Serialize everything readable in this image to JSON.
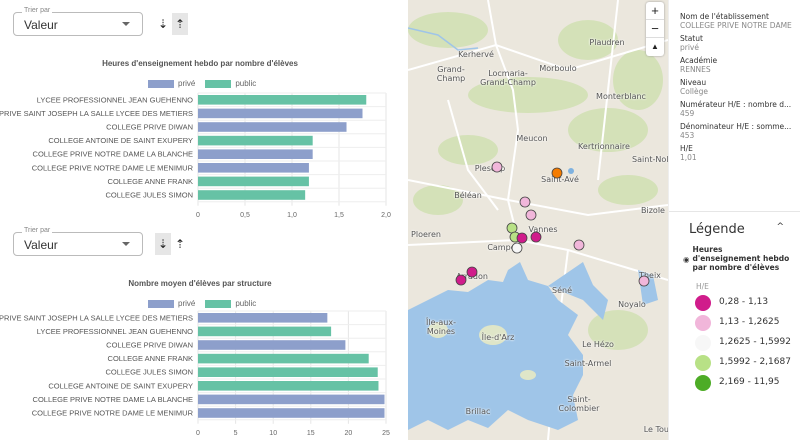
{
  "sort1": {
    "label": "Trier par",
    "value": "Valeur"
  },
  "sort2": {
    "label": "Trier par",
    "value": "Valeur"
  },
  "sort_icons": {
    "desc": "⇣",
    "asc": "⇡"
  },
  "colors": {
    "prive": "#8d9fcb",
    "public": "#66c2a5"
  },
  "legend": {
    "prive": "privé",
    "public": "public"
  },
  "chart_data": [
    {
      "type": "bar",
      "orientation": "horizontal",
      "title": "Heures d'enseignement hebdo par nombre d'élèves",
      "categories": [
        "LYCEE PROFESSIONNEL JEAN GUEHENNO",
        "PRIVE SAINT JOSEPH LA SALLE LYCEE DES METIERS",
        "COLLEGE PRIVE DIWAN",
        "COLLEGE ANTOINE DE SAINT EXUPERY",
        "COLLEGE PRIVE NOTRE DAME LA BLANCHE",
        "COLLEGE PRIVE NOTRE DAME LE MENIMUR",
        "COLLEGE ANNE FRANK",
        "COLLEGE JULES SIMON"
      ],
      "values": [
        1.79,
        1.75,
        1.58,
        1.22,
        1.22,
        1.18,
        1.18,
        1.14
      ],
      "status": [
        "public",
        "privé",
        "privé",
        "public",
        "privé",
        "privé",
        "public",
        "public"
      ],
      "ticks": [
        "0",
        "0,5",
        "1,0",
        "1,5",
        "2,0"
      ],
      "xlim": [
        0,
        2
      ],
      "grid": true,
      "legend_position": "top"
    },
    {
      "type": "bar",
      "orientation": "horizontal",
      "title": "Nombre moyen d'élèves par structure",
      "categories": [
        "PRIVE SAINT JOSEPH LA SALLE LYCEE DES METIERS",
        "LYCEE PROFESSIONNEL JEAN GUEHENNO",
        "COLLEGE PRIVE DIWAN",
        "COLLEGE ANNE FRANK",
        "COLLEGE JULES SIMON",
        "COLLEGE ANTOINE DE SAINT EXUPERY",
        "COLLEGE PRIVE NOTRE DAME LA BLANCHE",
        "COLLEGE PRIVE NOTRE DAME LE MENIMUR"
      ],
      "values": [
        17.2,
        17.7,
        19.6,
        22.7,
        23.9,
        24.0,
        24.8,
        24.8
      ],
      "status": [
        "privé",
        "public",
        "privé",
        "public",
        "public",
        "public",
        "privé",
        "privé"
      ],
      "ticks": [
        "0",
        "5",
        "10",
        "15",
        "20",
        "25"
      ],
      "xlim": [
        0,
        25
      ],
      "grid": true,
      "legend_position": "top"
    }
  ],
  "map": {
    "zoom_in": "+",
    "zoom_out": "−",
    "compass": "▲",
    "places": [
      "Kerhervé",
      "Grand-Champ",
      "Locmaria-Grand-Champ",
      "Morboulo",
      "Plaudren",
      "Monterblanc",
      "Meucon",
      "Kertrionnaire",
      "Saint-Nolff",
      "Plescop",
      "Saint-Avé",
      "Béléan",
      "Bizole",
      "Ploeren",
      "Vannes",
      "Campen",
      "Arradon",
      "Theix",
      "Séné",
      "Noyalo",
      "Île-aux-Moines",
      "Île-d'Arz",
      "Le Hézo",
      "Saint-Armel",
      "Saint-Colombier",
      "Brillac",
      "Le Tour"
    ]
  },
  "details": [
    {
      "key": "Nom de l'établissement",
      "value": "COLLEGE PRIVE NOTRE DAME"
    },
    {
      "key": "Statut",
      "value": "privé"
    },
    {
      "key": "Académie",
      "value": "RENNES"
    },
    {
      "key": "Niveau",
      "value": "Collège"
    },
    {
      "key": "Numérateur H/E : nombre d...",
      "value": "459"
    },
    {
      "key": "Dénominateur H/E : somme...",
      "value": "453"
    },
    {
      "key": "H/E",
      "value": "1,01"
    }
  ],
  "map_legend": {
    "title": "Légende",
    "toggle": "^",
    "layer": "Heures d'enseignement hebdo par nombre d'élèves",
    "field": "H/E",
    "classes": [
      {
        "label": "0,28 - 1,13",
        "color": "#d01c8b"
      },
      {
        "label": "1,13 - 1,2625",
        "color": "#f1b6da"
      },
      {
        "label": "1,2625 - 1,5992",
        "color": "#f7f7f7"
      },
      {
        "label": "1,5992 - 2,1687",
        "color": "#b8e186"
      },
      {
        "label": "2,169 - 11,95",
        "color": "#4dac26"
      }
    ]
  }
}
